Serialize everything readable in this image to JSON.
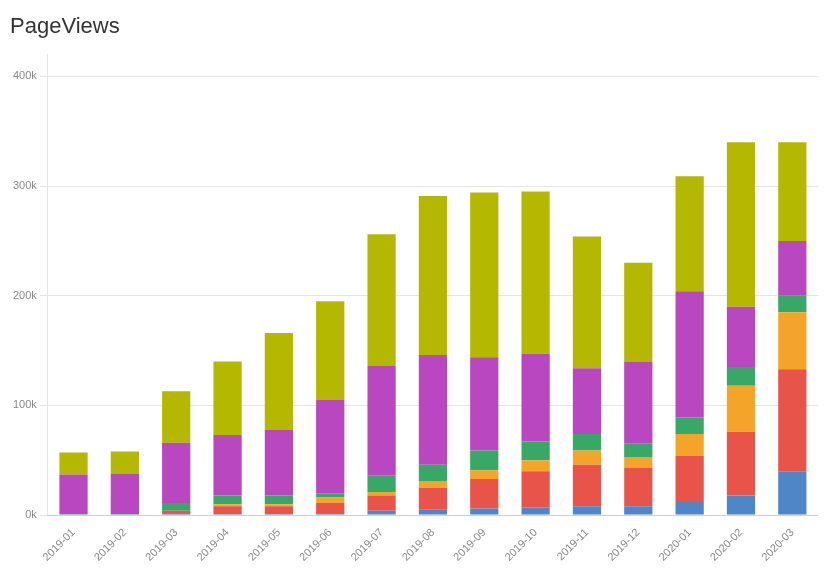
{
  "chart_data": {
    "type": "bar",
    "title": "PageViews",
    "categories": [
      "2019-01",
      "2019-02",
      "2019-03",
      "2019-04",
      "2019-05",
      "2019-06",
      "2019-07",
      "2019-08",
      "2019-09",
      "2019-10",
      "2019-11",
      "2019-12",
      "2020-01",
      "2020-02",
      "2020-03"
    ],
    "series": [
      {
        "color": "#4e86c8",
        "values": [
          0,
          0,
          1000,
          1000,
          1000,
          1000,
          4000,
          5000,
          6000,
          7000,
          8000,
          8000,
          12000,
          18000,
          40000
        ]
      },
      {
        "color": "#e8534a",
        "values": [
          0,
          0,
          3000,
          7000,
          7000,
          10000,
          14000,
          20000,
          27000,
          33000,
          38000,
          35000,
          42000,
          58000,
          93000
        ]
      },
      {
        "color": "#f4a428",
        "values": [
          0,
          0,
          0,
          2000,
          2000,
          5000,
          3000,
          6000,
          8000,
          10000,
          13000,
          10000,
          20000,
          42000,
          52000
        ]
      },
      {
        "color": "#37a865",
        "values": [
          1000,
          1000,
          7000,
          8000,
          8000,
          4000,
          15000,
          15000,
          18000,
          17000,
          15000,
          12000,
          15000,
          17000,
          15000
        ]
      },
      {
        "color": "#b847c0",
        "values": [
          36000,
          37000,
          55000,
          55000,
          60000,
          85000,
          100000,
          100000,
          85000,
          80000,
          60000,
          75000,
          115000,
          55000,
          50000
        ]
      },
      {
        "color": "#b5b800",
        "values": [
          20000,
          20000,
          47000,
          67000,
          88000,
          90000,
          120000,
          145000,
          150000,
          148000,
          120000,
          90000,
          105000,
          150000,
          90000
        ]
      }
    ],
    "stacked": true,
    "ylim": [
      0,
      420000
    ],
    "yticks": [
      {
        "value": 0,
        "label": "0k"
      },
      {
        "value": 100000,
        "label": "100k"
      },
      {
        "value": 200000,
        "label": "200k"
      },
      {
        "value": 300000,
        "label": "300k"
      },
      {
        "value": 400000,
        "label": "400k"
      }
    ],
    "grid": true
  }
}
